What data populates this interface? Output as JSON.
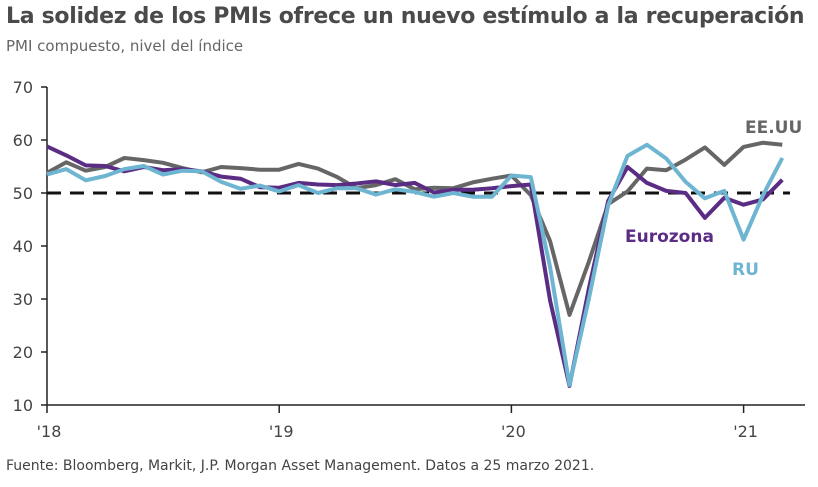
{
  "title": "La solidez de los PMIs ofrece un nuevo estímulo a la recuperación",
  "subtitle": "PMI compuesto, nivel del índice",
  "source": "Fuente: Bloomberg, Markit, J.P. Morgan Asset Management. Datos a 25 marzo 2021.",
  "chart_data": {
    "type": "line",
    "title": "La solidez de los PMIs ofrece un nuevo estímulo a la recuperación",
    "ylabel": "PMI compuesto, nivel del índice",
    "xlabel": "",
    "ylim": [
      10,
      70
    ],
    "yticks": [
      "10",
      "20",
      "30",
      "40",
      "50",
      "60",
      "70"
    ],
    "xticks": [
      {
        "label": "'18",
        "month": 0
      },
      {
        "label": "'19",
        "month": 12
      },
      {
        "label": "'20",
        "month": 24
      },
      {
        "label": "'21",
        "month": 36
      }
    ],
    "x_start": "2018-01",
    "reference_line": 50,
    "series": [
      {
        "name": "EE.UU",
        "color": "#666666",
        "values": [
          53.8,
          55.8,
          54.2,
          54.9,
          56.6,
          56.2,
          55.7,
          54.7,
          53.9,
          54.9,
          54.7,
          54.4,
          54.4,
          55.5,
          54.6,
          53.0,
          50.9,
          51.5,
          52.6,
          50.7,
          51.0,
          50.9,
          52.0,
          52.7,
          53.3,
          49.6,
          40.9,
          27.0,
          37.0,
          47.9,
          50.3,
          54.6,
          54.3,
          56.3,
          58.6,
          55.3,
          58.7,
          59.5,
          59.1
        ]
      },
      {
        "name": "Eurozona",
        "color": "#5b2c83",
        "values": [
          58.8,
          57.1,
          55.2,
          55.1,
          54.1,
          54.9,
          54.3,
          54.5,
          54.1,
          53.1,
          52.7,
          51.1,
          51.0,
          51.9,
          51.6,
          51.5,
          51.8,
          52.2,
          51.5,
          51.9,
          50.1,
          50.6,
          50.6,
          50.9,
          51.3,
          51.6,
          29.7,
          13.6,
          31.9,
          48.5,
          54.9,
          51.9,
          50.4,
          50.0,
          45.3,
          49.1,
          47.8,
          48.8,
          52.5
        ]
      },
      {
        "name": "RU",
        "color": "#6db5d1",
        "values": [
          53.5,
          54.5,
          52.4,
          53.2,
          54.5,
          55.1,
          53.5,
          54.2,
          54.1,
          52.1,
          50.8,
          51.4,
          50.3,
          51.5,
          50.0,
          50.9,
          50.9,
          49.7,
          50.7,
          50.2,
          49.3,
          50.0,
          49.3,
          49.3,
          53.3,
          53.0,
          36.0,
          13.8,
          30.0,
          47.7,
          57.0,
          59.1,
          56.5,
          52.1,
          49.0,
          50.4,
          41.2,
          49.6,
          56.6
        ]
      }
    ]
  }
}
